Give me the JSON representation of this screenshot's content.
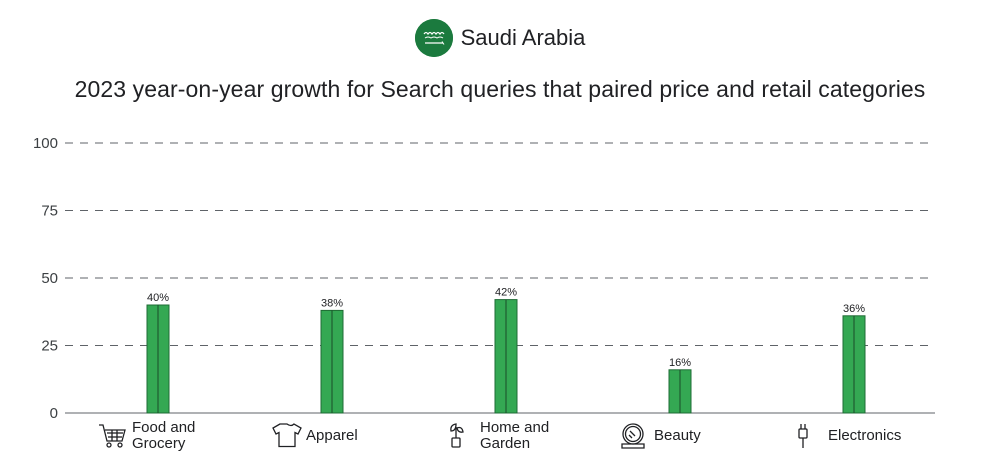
{
  "header": {
    "country": "Saudi Arabia",
    "flag_icon": "saudi-arabia-flag-icon"
  },
  "chart_data": {
    "type": "bar",
    "title": "2023 year-on-year growth for Search queries that paired price and retail categories",
    "categories": [
      "Food and Grocery",
      "Apparel",
      "Home and Garden",
      "Beauty",
      "Electronics"
    ],
    "category_lines": [
      [
        "Food and",
        "Grocery"
      ],
      [
        "Apparel"
      ],
      [
        "Home and",
        "Garden"
      ],
      [
        "Beauty"
      ],
      [
        "Electronics"
      ]
    ],
    "category_icons": [
      "shopping-cart-icon",
      "t-shirt-icon",
      "plant-icon",
      "mirror-icon",
      "plug-icon"
    ],
    "values": [
      40,
      38,
      42,
      16,
      36
    ],
    "data_labels": [
      "40%",
      "38%",
      "42%",
      "16%",
      "36%"
    ],
    "yticks": [
      0,
      25,
      50,
      75,
      100
    ],
    "ylim": [
      0,
      100
    ],
    "grid": true,
    "bar_color": "#34a853",
    "bar_edge_color": "#1e6b34"
  }
}
